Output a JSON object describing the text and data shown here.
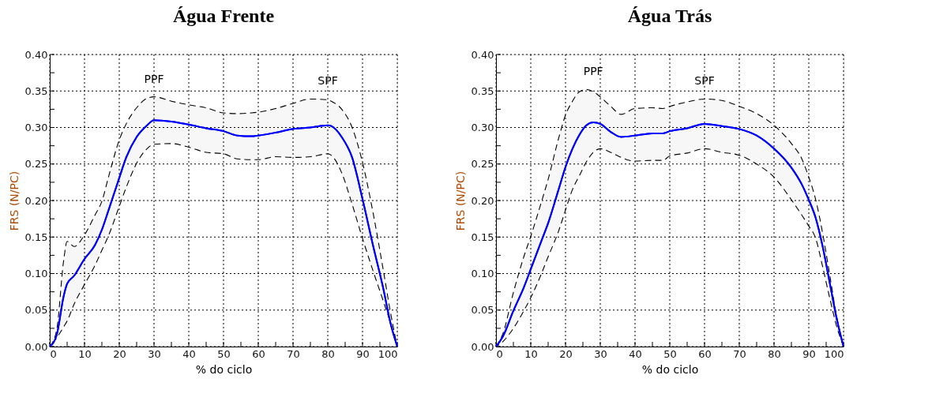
{
  "chart_data": [
    {
      "type": "line",
      "title": "Água Frente",
      "xlabel": "% do ciclo",
      "ylabel": "FRS (N/PC)",
      "xlim": [
        0,
        100
      ],
      "ylim": [
        0,
        0.4
      ],
      "grid": true,
      "xticks": [
        0,
        {
          "value": 5,
          "label": null
        },
        10,
        {
          "value": 15,
          "label": null
        },
        20,
        {
          "value": 25,
          "label": null
        },
        30,
        {
          "value": 35,
          "label": null
        },
        40,
        {
          "value": 45,
          "label": null
        },
        50,
        {
          "value": 55,
          "label": null
        },
        60,
        {
          "value": 65,
          "label": null
        },
        70,
        {
          "value": 75,
          "label": null
        },
        80,
        {
          "value": 85,
          "label": null
        },
        90,
        {
          "value": 95,
          "label": null
        },
        100
      ],
      "yticks": [
        {
          "value": 0,
          "label": "0.00"
        },
        {
          "value": 0.025,
          "label": null
        },
        {
          "value": 0.05,
          "label": "0.05"
        },
        {
          "value": 0.075,
          "label": null
        },
        {
          "value": 0.1,
          "label": "0.10"
        },
        {
          "value": 0.125,
          "label": null
        },
        {
          "value": 0.15,
          "label": "0.15"
        },
        {
          "value": 0.175,
          "label": null
        },
        {
          "value": 0.2,
          "label": "0.20"
        },
        {
          "value": 0.225,
          "label": null
        },
        {
          "value": 0.25,
          "label": "0.25"
        },
        {
          "value": 0.275,
          "label": null
        },
        {
          "value": 0.3,
          "label": "0.30"
        },
        {
          "value": 0.325,
          "label": null
        },
        {
          "value": 0.35,
          "label": "0.35"
        },
        {
          "value": 0.375,
          "label": null
        },
        {
          "value": 0.4,
          "label": "0.40"
        }
      ],
      "annotations": [
        "PPF",
        "SPF"
      ],
      "series": [
        {
          "color": "#0000ff",
          "x": [
            0,
            2,
            4,
            5,
            7,
            10,
            13,
            15,
            17,
            20,
            22,
            25,
            28,
            30,
            35,
            40,
            45,
            50,
            54,
            58,
            60,
            65,
            70,
            75,
            80,
            81,
            84,
            87,
            90,
            93,
            96,
            98,
            100
          ],
          "values": [
            0,
            0.016,
            0.069,
            0.086,
            0.097,
            0.12,
            0.139,
            0.16,
            0.188,
            0.231,
            0.259,
            0.287,
            0.303,
            0.31,
            0.308,
            0.304,
            0.299,
            0.295,
            0.289,
            0.288,
            0.289,
            0.293,
            0.298,
            0.3,
            0.303,
            0.302,
            0.287,
            0.259,
            0.202,
            0.139,
            0.079,
            0.033,
            0
          ],
          "line_style": "solid",
          "upper": [
            0,
            0.023,
            0.118,
            0.144,
            0.137,
            0.153,
            0.18,
            0.199,
            0.234,
            0.283,
            0.305,
            0.327,
            0.34,
            0.342,
            0.336,
            0.331,
            0.327,
            0.32,
            0.319,
            0.32,
            0.321,
            0.326,
            0.333,
            0.339,
            0.338,
            0.336,
            0.325,
            0.3,
            0.252,
            0.184,
            0.104,
            0.048,
            0
          ],
          "lower": [
            0,
            0.012,
            0.027,
            0.035,
            0.058,
            0.085,
            0.111,
            0.132,
            0.153,
            0.192,
            0.218,
            0.251,
            0.271,
            0.277,
            0.278,
            0.273,
            0.266,
            0.264,
            0.257,
            0.256,
            0.256,
            0.26,
            0.259,
            0.26,
            0.264,
            0.262,
            0.238,
            0.195,
            0.148,
            0.104,
            0.062,
            0.033,
            0
          ]
        }
      ]
    },
    {
      "type": "line",
      "title": "Água Trás",
      "xlabel": "% do ciclo",
      "ylabel": "FRS (N/PC)",
      "xlim": [
        0,
        100
      ],
      "ylim": [
        0,
        0.4
      ],
      "grid": true,
      "xticks": [
        0,
        {
          "value": 5,
          "label": null
        },
        10,
        {
          "value": 15,
          "label": null
        },
        20,
        {
          "value": 25,
          "label": null
        },
        30,
        {
          "value": 35,
          "label": null
        },
        40,
        {
          "value": 45,
          "label": null
        },
        50,
        {
          "value": 55,
          "label": null
        },
        60,
        {
          "value": 65,
          "label": null
        },
        70,
        {
          "value": 75,
          "label": null
        },
        80,
        {
          "value": 85,
          "label": null
        },
        90,
        {
          "value": 95,
          "label": null
        },
        100
      ],
      "yticks": [
        {
          "value": 0,
          "label": "0.00"
        },
        {
          "value": 0.025,
          "label": null
        },
        {
          "value": 0.05,
          "label": "0.05"
        },
        {
          "value": 0.075,
          "label": null
        },
        {
          "value": 0.1,
          "label": "0.10"
        },
        {
          "value": 0.125,
          "label": null
        },
        {
          "value": 0.15,
          "label": "0.15"
        },
        {
          "value": 0.175,
          "label": null
        },
        {
          "value": 0.2,
          "label": "0.20"
        },
        {
          "value": 0.225,
          "label": null
        },
        {
          "value": 0.25,
          "label": "0.25"
        },
        {
          "value": 0.275,
          "label": null
        },
        {
          "value": 0.3,
          "label": "0.30"
        },
        {
          "value": 0.325,
          "label": null
        },
        {
          "value": 0.35,
          "label": "0.35"
        },
        {
          "value": 0.375,
          "label": null
        },
        {
          "value": 0.4,
          "label": "0.40"
        }
      ],
      "annotations": [
        "PPF",
        "SPF"
      ],
      "series": [
        {
          "color": "#0000ff",
          "x": [
            0,
            2,
            5,
            8,
            10,
            13,
            15,
            18,
            20,
            22,
            24,
            26,
            28,
            30,
            33,
            36,
            40,
            45,
            48,
            50,
            55,
            60,
            65,
            70,
            75,
            80,
            85,
            88,
            90,
            92,
            94,
            96,
            98,
            100
          ],
          "values": [
            0,
            0.014,
            0.049,
            0.081,
            0.106,
            0.144,
            0.169,
            0.215,
            0.246,
            0.271,
            0.29,
            0.303,
            0.307,
            0.305,
            0.294,
            0.287,
            0.289,
            0.292,
            0.292,
            0.295,
            0.299,
            0.305,
            0.302,
            0.298,
            0.289,
            0.271,
            0.245,
            0.222,
            0.201,
            0.176,
            0.137,
            0.088,
            0.039,
            0
          ],
          "line_style": "solid",
          "upper": [
            0,
            0.018,
            0.074,
            0.123,
            0.151,
            0.197,
            0.229,
            0.285,
            0.317,
            0.336,
            0.349,
            0.352,
            0.349,
            0.342,
            0.329,
            0.318,
            0.326,
            0.327,
            0.326,
            0.329,
            0.335,
            0.339,
            0.337,
            0.329,
            0.319,
            0.303,
            0.278,
            0.257,
            0.232,
            0.201,
            0.155,
            0.099,
            0.042,
            0
          ],
          "lower": [
            0,
            0.007,
            0.025,
            0.049,
            0.067,
            0.099,
            0.123,
            0.158,
            0.187,
            0.215,
            0.234,
            0.253,
            0.266,
            0.271,
            0.266,
            0.259,
            0.254,
            0.255,
            0.255,
            0.261,
            0.265,
            0.271,
            0.266,
            0.262,
            0.25,
            0.232,
            0.201,
            0.18,
            0.165,
            0.148,
            0.109,
            0.067,
            0.028,
            0
          ]
        }
      ]
    }
  ]
}
